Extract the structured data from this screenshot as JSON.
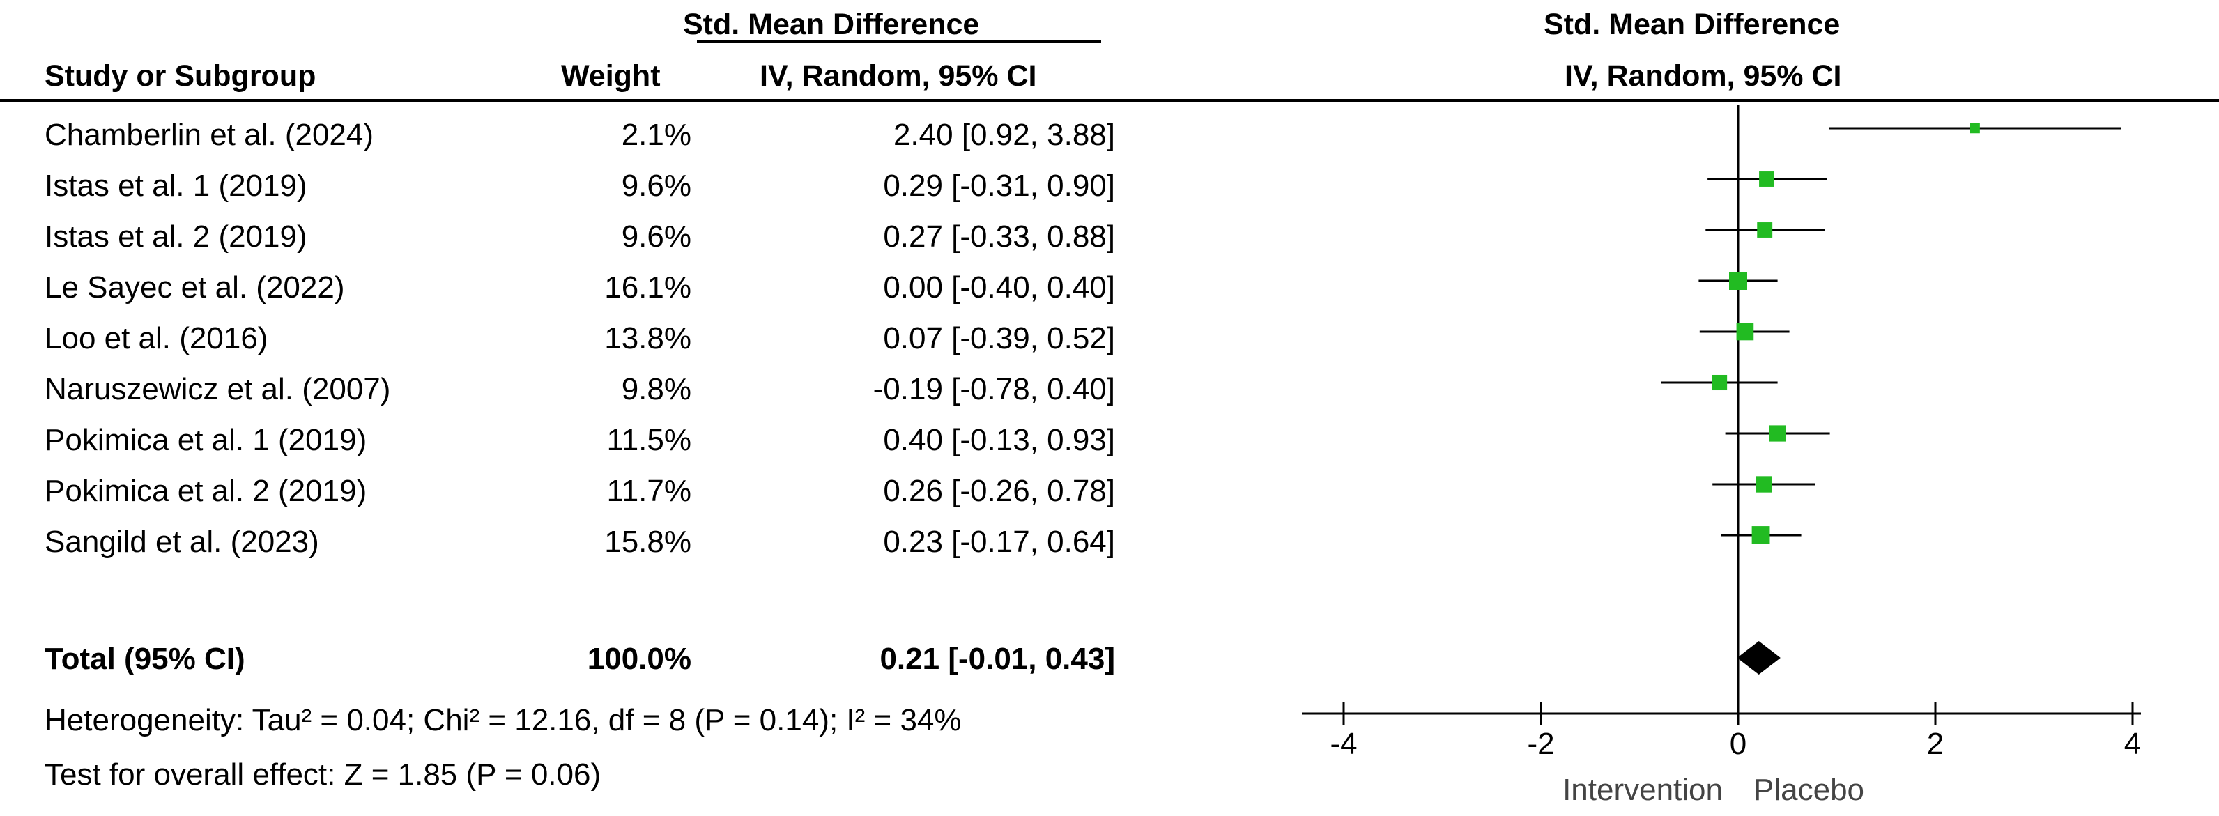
{
  "header": {
    "col_study": "Study or Subgroup",
    "col_weight": "Weight",
    "col_effect_line1": "Std. Mean Difference",
    "col_effect_line2": "IV, Random, 95% CI",
    "plot_line1": "Std. Mean Difference",
    "plot_line2": "IV, Random, 95% CI"
  },
  "total": {
    "label": "Total (95% CI)",
    "weight": "100.0%",
    "ci_text": "0.21 [-0.01, 0.43]"
  },
  "footer": {
    "heterogeneity": "Heterogeneity: Tau² = 0.04; Chi² = 12.16, df = 8 (P = 0.14); I² = 34%",
    "overall_effect": "Test for overall effect: Z = 1.85 (P = 0.06)"
  },
  "axis": {
    "left_label": "Intervention",
    "right_label": "Placebo"
  },
  "colors": {
    "marker": "#22bb22",
    "diamond": "#000000",
    "lines": "#000000"
  },
  "chart_data": {
    "type": "forest",
    "xlim": [
      -4,
      4
    ],
    "ticks": [
      -4,
      -2,
      0,
      2,
      4
    ],
    "tick_labels": [
      "-4",
      "-2",
      "0",
      "2",
      "4"
    ],
    "studies": [
      {
        "name": "Chamberlin et al. (2024)",
        "weight": "2.1%",
        "ci_text": "2.40 [0.92, 3.88]",
        "est": 2.4,
        "lo": 0.92,
        "hi": 3.88,
        "w": 2.1
      },
      {
        "name": "Istas et al. 1 (2019)",
        "weight": "9.6%",
        "ci_text": "0.29 [-0.31, 0.90]",
        "est": 0.29,
        "lo": -0.31,
        "hi": 0.9,
        "w": 9.6
      },
      {
        "name": "Istas et al. 2 (2019)",
        "weight": "9.6%",
        "ci_text": "0.27 [-0.33, 0.88]",
        "est": 0.27,
        "lo": -0.33,
        "hi": 0.88,
        "w": 9.6
      },
      {
        "name": "Le Sayec et al. (2022)",
        "weight": "16.1%",
        "ci_text": "0.00 [-0.40, 0.40]",
        "est": 0.0,
        "lo": -0.4,
        "hi": 0.4,
        "w": 16.1
      },
      {
        "name": "Loo et al. (2016)",
        "weight": "13.8%",
        "ci_text": "0.07 [-0.39, 0.52]",
        "est": 0.07,
        "lo": -0.39,
        "hi": 0.52,
        "w": 13.8
      },
      {
        "name": "Naruszewicz et al. (2007)",
        "weight": "9.8%",
        "ci_text": "-0.19 [-0.78, 0.40]",
        "est": -0.19,
        "lo": -0.78,
        "hi": 0.4,
        "w": 9.8
      },
      {
        "name": "Pokimica et al. 1 (2019)",
        "weight": "11.5%",
        "ci_text": "0.40 [-0.13, 0.93]",
        "est": 0.4,
        "lo": -0.13,
        "hi": 0.93,
        "w": 11.5
      },
      {
        "name": "Pokimica et al. 2 (2019)",
        "weight": "11.7%",
        "ci_text": "0.26 [-0.26, 0.78]",
        "est": 0.26,
        "lo": -0.26,
        "hi": 0.78,
        "w": 11.7
      },
      {
        "name": "Sangild et al. (2023)",
        "weight": "15.8%",
        "ci_text": "0.23 [-0.17, 0.64]",
        "est": 0.23,
        "lo": -0.17,
        "hi": 0.64,
        "w": 15.8
      }
    ],
    "pooled": {
      "est": 0.21,
      "lo": -0.01,
      "hi": 0.43
    }
  }
}
